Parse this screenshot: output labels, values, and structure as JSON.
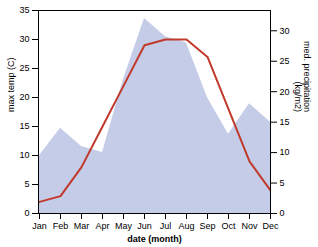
{
  "chart_data": {
    "type": "line",
    "xlabel": "date (month)",
    "ylabel": "max temp (C)",
    "y2label": "med. precipitation\n(kg/m2)",
    "categories": [
      "Jan",
      "Feb",
      "Mar",
      "Apr",
      "May",
      "Jun",
      "Jul",
      "Aug",
      "Sep",
      "Oct",
      "Nov",
      "Dec"
    ],
    "series": [
      {
        "type": "area",
        "axis": "y2",
        "color": "#c5cce8",
        "values": [
          9.5,
          14,
          11,
          10,
          22,
          32,
          29,
          28,
          19,
          13,
          18,
          15
        ]
      },
      {
        "type": "line",
        "color": "#c0392b",
        "values": [
          2,
          3,
          8,
          15,
          22,
          29,
          30,
          30,
          27,
          18,
          9,
          4
        ]
      }
    ],
    "ylim": [
      0,
      35
    ],
    "yticks": [
      0,
      5,
      10,
      15,
      20,
      25,
      30,
      35
    ],
    "y2lim": [
      0,
      33.33
    ],
    "y2ticks": [
      0,
      5,
      10,
      15,
      20,
      25,
      30
    ],
    "grid": false
  }
}
